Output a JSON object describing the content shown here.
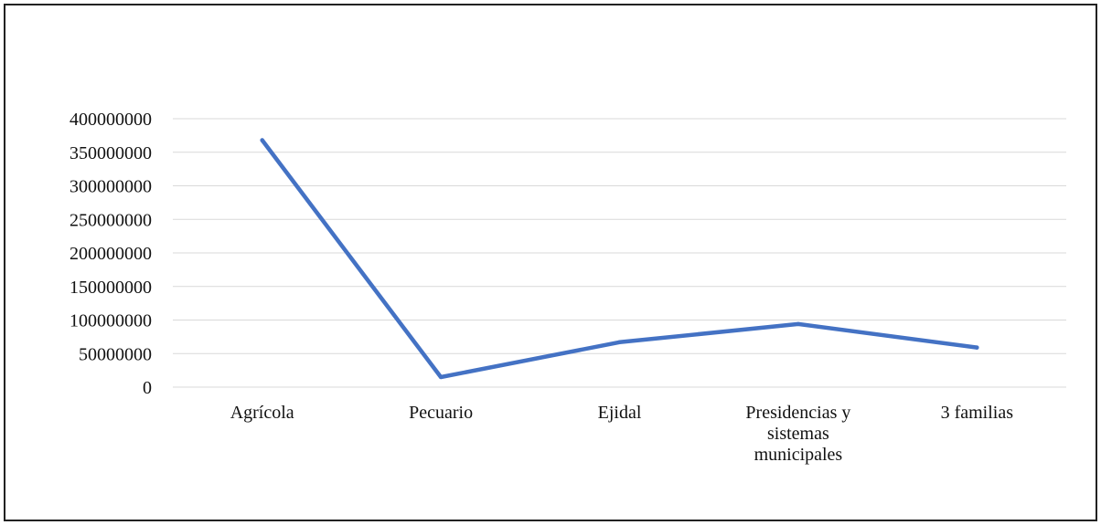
{
  "chart_data": {
    "type": "line",
    "categories": [
      "Agrícola",
      "Pecuario",
      "Ejidal",
      "Presidencias y sistemas municipales",
      "3 familias"
    ],
    "category_label_lines": [
      [
        "Agrícola"
      ],
      [
        "Pecuario"
      ],
      [
        "Ejidal"
      ],
      [
        "Presidencias y",
        "sistemas",
        "municipales"
      ],
      [
        "3 familias"
      ]
    ],
    "series": [
      {
        "values": [
          368000000,
          15000000,
          67000000,
          94000000,
          59000000
        ]
      }
    ],
    "y_ticks": [
      "0",
      "50000000",
      "100000000",
      "150000000",
      "200000000",
      "250000000",
      "300000000",
      "350000000",
      "400000000"
    ],
    "ylim": [
      0,
      400000000
    ],
    "grid": true,
    "legend": "none",
    "title": "",
    "xlabel": "",
    "ylabel": "",
    "colors": {
      "line": "#4472C4",
      "grid": "#D9D9D9",
      "frame": "#222222"
    }
  }
}
